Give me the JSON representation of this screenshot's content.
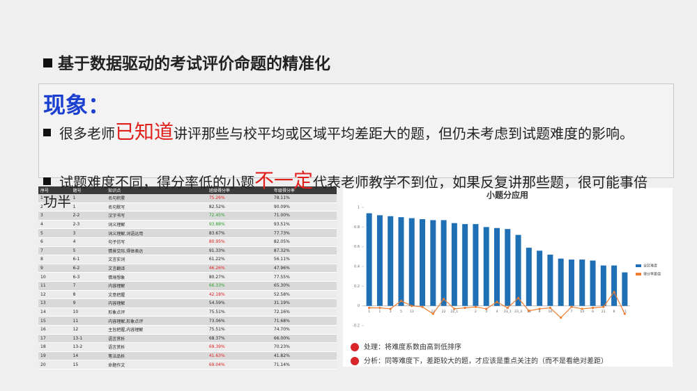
{
  "header": {
    "title": "基于数据驱动的考试评价命题的精准化"
  },
  "box": {
    "heading": "现象：",
    "bullets": [
      [
        {
          "text": "很多老师",
          "style": "normal"
        },
        {
          "text": "已知道",
          "style": "em"
        },
        {
          "text": "讲评那些与校平均或区域平均差距大的题，但仍未考虑到试题难度的影响。",
          "style": "normal"
        }
      ],
      [
        {
          "text": "试题难度不同，得分率低的小题",
          "style": "normal"
        },
        {
          "text": "不一定",
          "style": "em"
        },
        {
          "text": "代表老师教学不到位，如果反复讲那些题，很可能事倍功半",
          "style": "normal"
        }
      ]
    ]
  },
  "table": {
    "columns": [
      "序号",
      "题号",
      "知识点",
      "班级得分率",
      "年级得分率"
    ],
    "rows": [
      {
        "cells": [
          "1",
          "1",
          "名句积累",
          "75.26%",
          "78.11%"
        ],
        "color": "#e0201c"
      },
      {
        "cells": [
          "2",
          "1",
          "名句默写",
          "82.52%",
          "90.09%"
        ],
        "color": "#222222"
      },
      {
        "cells": [
          "3",
          "2-2",
          "汉字书写",
          "72.45%",
          "71.00%"
        ],
        "color": "#2ca02c"
      },
      {
        "cells": [
          "4",
          "2-3",
          "词义理解",
          "93.88%",
          "93.51%"
        ],
        "color": "#2ca02c"
      },
      {
        "cells": [
          "5",
          "3",
          "词义理解,词语运用",
          "83.67%",
          "77.73%"
        ],
        "color": "#222222"
      },
      {
        "cells": [
          "6",
          "4",
          "句子仿写",
          "80.95%",
          "82.05%"
        ],
        "color": "#e0201c"
      },
      {
        "cells": [
          "7",
          "5",
          "情景交际,得体表达",
          "91.33%",
          "87.32%"
        ],
        "color": "#222222"
      },
      {
        "cells": [
          "8",
          "6-1",
          "文言实词",
          "61.22%",
          "56.11%"
        ],
        "color": "#222222"
      },
      {
        "cells": [
          "9",
          "6-2",
          "文言翻译",
          "46.26%",
          "47.96%"
        ],
        "color": "#e0201c"
      },
      {
        "cells": [
          "10",
          "6-3",
          "情境想象",
          "80.27%",
          "77.55%"
        ],
        "color": "#222222"
      },
      {
        "cells": [
          "11",
          "7",
          "内容理解",
          "66.33%",
          "65.30%"
        ],
        "color": "#2ca02c"
      },
      {
        "cells": [
          "12",
          "8",
          "文意把握",
          "42.18%",
          "52.58%"
        ],
        "color": "#e0201c"
      },
      {
        "cells": [
          "13",
          "9",
          "内容理解",
          "54.59%",
          "31.19%"
        ],
        "color": "#222222"
      },
      {
        "cells": [
          "14",
          "10",
          "形象点评",
          "75.51%",
          "72.16%"
        ],
        "color": "#222222"
      },
      {
        "cells": [
          "15",
          "11",
          "内容理解,形象点评",
          "73.06%",
          "71.68%"
        ],
        "color": "#222222"
      },
      {
        "cells": [
          "16",
          "12",
          "主旨把握,内容理解",
          "75.51%",
          "74.70%"
        ],
        "color": "#222222"
      },
      {
        "cells": [
          "17",
          "13-1",
          "语言赏析",
          "68.37%",
          "66.00%"
        ],
        "color": "#222222"
      },
      {
        "cells": [
          "18",
          "13-2",
          "语言赏析",
          "69.39%",
          "70.23%"
        ],
        "color": "#e0201c"
      },
      {
        "cells": [
          "19",
          "14",
          "笔法品析",
          "41.63%",
          "41.82%"
        ],
        "color": "#e0201c"
      },
      {
        "cells": [
          "20",
          "15",
          "命题作文",
          "69.04%",
          "71.14%"
        ],
        "color": "#e0201c"
      }
    ]
  },
  "chart_data": {
    "type": "bar_line",
    "title": "小题分应用",
    "categories": [
      "1",
      "1",
      "3",
      "5",
      "13",
      null,
      "12",
      "22",
      "22_1",
      null,
      "2",
      "3",
      "4",
      "23_1",
      "23_3",
      "15",
      "9",
      "10",
      null,
      "7",
      "14",
      "6",
      "21",
      "8",
      "11"
    ],
    "series": [
      {
        "name": "全区难度",
        "color": "#1f6fb5",
        "kind": "bar",
        "values": [
          0.94,
          0.92,
          0.91,
          0.9,
          0.89,
          0.88,
          0.87,
          0.87,
          0.84,
          0.83,
          0.83,
          0.8,
          0.79,
          0.78,
          0.72,
          0.59,
          0.56,
          0.52,
          0.48,
          0.47,
          0.47,
          0.46,
          0.41,
          0.41,
          0.34
        ]
      },
      {
        "name": "得分率差值",
        "color": "#ed7d31",
        "kind": "line",
        "values": [
          -0.02,
          -0.02,
          -0.03,
          0.05,
          0.0,
          -0.01,
          -0.08,
          0.07,
          -0.03,
          -0.02,
          -0.01,
          -0.03,
          0.04,
          -0.02,
          0.08,
          -0.05,
          -0.03,
          -0.02,
          -0.12,
          -0.01,
          -0.03,
          -0.02,
          -0.01,
          0.14,
          -0.08
        ]
      }
    ],
    "ylim": [
      -0.2,
      1
    ],
    "yticks": [
      -0.2,
      0,
      0.2,
      0.4,
      0.6,
      0.8,
      1
    ],
    "grid": false,
    "notes": [
      "处理：将难度系数由高到低排序",
      "分析：同等难度下，差距较大的题，才应该是重点关注的（而不是看绝对差距）"
    ]
  }
}
